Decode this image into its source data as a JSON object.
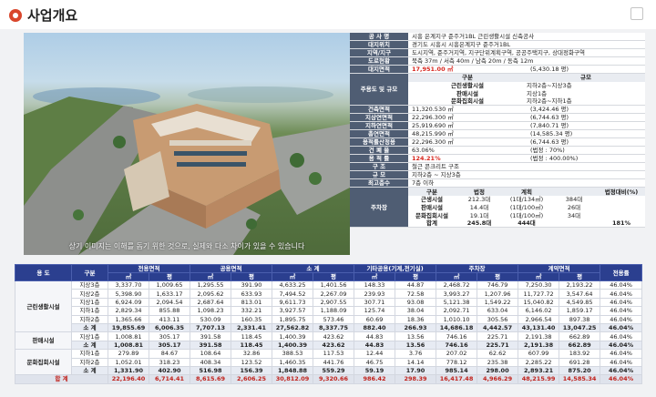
{
  "page": {
    "title": "사업개요"
  },
  "render_caption": "상기 이미지는 이해를 돕기 위한 것으로, 실제와 다소 차이가 있을 수 있습니다",
  "info": {
    "rows": [
      {
        "label": "공 사 명",
        "value": "시흥 은계지구 준주거1BL 근린생활시설 신축공사"
      },
      {
        "label": "대지위치",
        "value": "경기도 시흥시 시흥은계지구 준주거1BL"
      },
      {
        "label": "지역/지구",
        "value": "도시지역, 준주거지역, 지구단위계획구역, 공공주택지구, 상대정화구역"
      },
      {
        "label": "도로현황",
        "value": "북측 37m / 서측 40m / 남측 20m / 동측 12m"
      },
      {
        "label": "대지면적",
        "value": "17,951.00 ㎡",
        "value2": "(5,430.18 평)"
      }
    ],
    "use_label": "주용도 및 규모",
    "use_header": [
      "구분",
      "규모"
    ],
    "use_rows": [
      [
        "근린생활시설",
        "지하2층~지상3층"
      ],
      [
        "판매시설",
        "지상1층"
      ],
      [
        "문화집회시설",
        "지하2층~지하1층"
      ]
    ],
    "area_rows": [
      {
        "label": "건축면적",
        "value": "11,320.530 ㎡",
        "value2": "(3,424.46 평)"
      },
      {
        "label": "지상연면적",
        "value": "22,296.300 ㎡",
        "value2": "(6,744.63 평)"
      },
      {
        "label": "지하연면적",
        "value": "25,919.690 ㎡",
        "value2": "(7,840.71 평)"
      },
      {
        "label": "총연면적",
        "value": "48,215.990 ㎡",
        "value2": "(14,585.34 평)"
      },
      {
        "label": "용적률산정용",
        "value": "22,296.300 ㎡",
        "value2": "(6,744.63 평)"
      },
      {
        "label": "건 폐 율",
        "value": "63.06%",
        "value2": "(법정 : 70%)"
      },
      {
        "label": "용 적 률",
        "value": "124.21%",
        "value2": "(법정 : 400.00%)"
      },
      {
        "label": "구 조",
        "value": "철근 콘크리트 구조"
      },
      {
        "label": "규 모",
        "value": "지하2층 ~ 지상3층"
      },
      {
        "label": "최고층수",
        "value": "7층 이하"
      }
    ],
    "parking_label": "주차장",
    "parking_header": [
      "구분",
      "법정",
      "계획",
      "",
      "법정대비(%)"
    ],
    "parking_rows": [
      [
        "근생시설",
        "212.3대",
        "(1대/134㎡)",
        "384대",
        ""
      ],
      [
        "판매시설",
        "14.4대",
        "(1대/100㎡)",
        "26대",
        ""
      ],
      [
        "문화집회시설",
        "19.1대",
        "(1대/100㎡)",
        "34대",
        ""
      ],
      [
        "합계",
        "245.8대",
        "444대",
        "",
        "181%"
      ]
    ]
  },
  "table": {
    "group_header": [
      "용 도",
      "구분",
      "전용면적",
      "공용면적",
      "소 계",
      "기타공용(기계,전기실)",
      "주차장",
      "계약면적",
      "전용률"
    ],
    "unit_header": [
      "㎡",
      "평",
      "㎡",
      "평",
      "㎡",
      "평",
      "㎡",
      "평",
      "㎡",
      "평",
      "㎡",
      "평"
    ],
    "groups": [
      {
        "name": "근린생활시설",
        "rows": [
          {
            "label": "지상3층",
            "cells": [
              "3,337.70",
              "1,009.65",
              "1,295.55",
              "391.90",
              "4,633.25",
              "1,401.56",
              "148.33",
              "44.87",
              "2,468.72",
              "746.79",
              "7,250.30",
              "2,193.22",
              "46.04%"
            ]
          },
          {
            "label": "지상2층",
            "cells": [
              "5,398.90",
              "1,633.17",
              "2,095.62",
              "633.93",
              "7,494.52",
              "2,267.09",
              "239.93",
              "72.58",
              "3,993.27",
              "1,207.96",
              "11,727.72",
              "3,547.64",
              "46.04%"
            ]
          },
          {
            "label": "지상1층",
            "cells": [
              "6,924.09",
              "2,094.54",
              "2,687.64",
              "813.01",
              "9,611.73",
              "2,907.55",
              "307.71",
              "93.08",
              "5,121.38",
              "1,549.22",
              "15,040.82",
              "4,549.85",
              "46.04%"
            ]
          },
          {
            "label": "지하1층",
            "cells": [
              "2,829.34",
              "855.88",
              "1,098.23",
              "332.21",
              "3,927.57",
              "1,188.09",
              "125.74",
              "38.04",
              "2,092.71",
              "633.04",
              "6,146.02",
              "1,859.17",
              "46.04%"
            ]
          },
          {
            "label": "지하2층",
            "cells": [
              "1,365.66",
              "413.11",
              "530.09",
              "160.35",
              "1,895.75",
              "573.46",
              "60.69",
              "18.36",
              "1,010.10",
              "305.56",
              "2,966.54",
              "897.38",
              "46.04%"
            ]
          },
          {
            "label": "소 계",
            "sum": true,
            "cells": [
              "19,855.69",
              "6,006.35",
              "7,707.13",
              "2,331.41",
              "27,562.82",
              "8,337.75",
              "882.40",
              "266.93",
              "14,686.18",
              "4,442.57",
              "43,131.40",
              "13,047.25",
              "46.04%"
            ]
          }
        ]
      },
      {
        "name": "판매시설",
        "rows": [
          {
            "label": "지상1층",
            "cells": [
              "1,008.81",
              "305.17",
              "391.58",
              "118.45",
              "1,400.39",
              "423.62",
              "44.83",
              "13.56",
              "746.16",
              "225.71",
              "2,191.38",
              "662.89",
              "46.04%"
            ]
          },
          {
            "label": "소 계",
            "sum": true,
            "cells": [
              "1,008.81",
              "305.17",
              "391.58",
              "118.45",
              "1,400.39",
              "423.62",
              "44.83",
              "13.56",
              "746.16",
              "225.71",
              "2,191.38",
              "662.89",
              "46.04%"
            ]
          }
        ]
      },
      {
        "name": "문화집회시설",
        "rows": [
          {
            "label": "지하1층",
            "cells": [
              "279.89",
              "84.67",
              "108.64",
              "32.86",
              "388.53",
              "117.53",
              "12.44",
              "3.76",
              "207.02",
              "62.62",
              "607.99",
              "183.92",
              "46.04%"
            ]
          },
          {
            "label": "지하2층",
            "cells": [
              "1,052.01",
              "318.23",
              "408.34",
              "123.52",
              "1,460.35",
              "441.76",
              "46.75",
              "14.14",
              "778.12",
              "235.38",
              "2,285.22",
              "691.28",
              "46.04%"
            ]
          },
          {
            "label": "소 계",
            "sum": true,
            "cells": [
              "1,331.90",
              "402.90",
              "516.98",
              "156.39",
              "1,848.88",
              "559.29",
              "59.19",
              "17.90",
              "985.14",
              "298.00",
              "2,893.21",
              "875.20",
              "46.04%"
            ]
          }
        ]
      }
    ],
    "total": {
      "label": "합 계",
      "cells": [
        "22,196.40",
        "6,714.41",
        "8,615.69",
        "2,606.25",
        "30,812.09",
        "9,320.66",
        "986.42",
        "298.39",
        "16,417.48",
        "4,966.29",
        "48,215.99",
        "14,585.34",
        "46.04%"
      ]
    }
  }
}
